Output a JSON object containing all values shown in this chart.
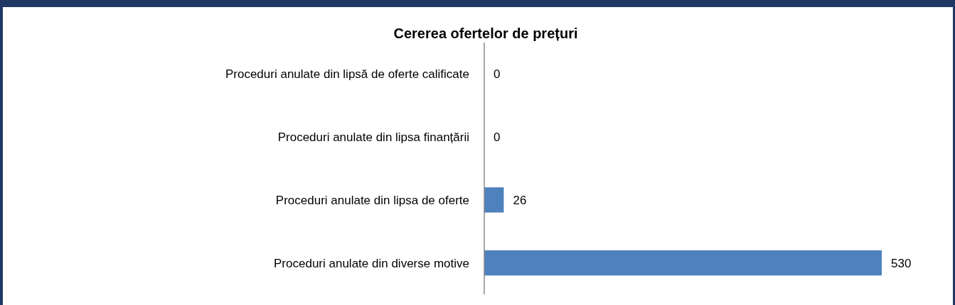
{
  "chart_data": {
    "type": "bar",
    "orientation": "horizontal",
    "title": "Cererea ofertelor de prețuri",
    "categories": [
      "Proceduri anulate din lipsă de oferte calificate",
      "Proceduri anulate din lipsa finanțării",
      "Proceduri anulate din lipsa de oferte",
      "Proceduri anulate din diverse motive"
    ],
    "values": [
      0,
      0,
      26,
      530
    ],
    "color": "#4f81bd",
    "data_labels": true
  }
}
